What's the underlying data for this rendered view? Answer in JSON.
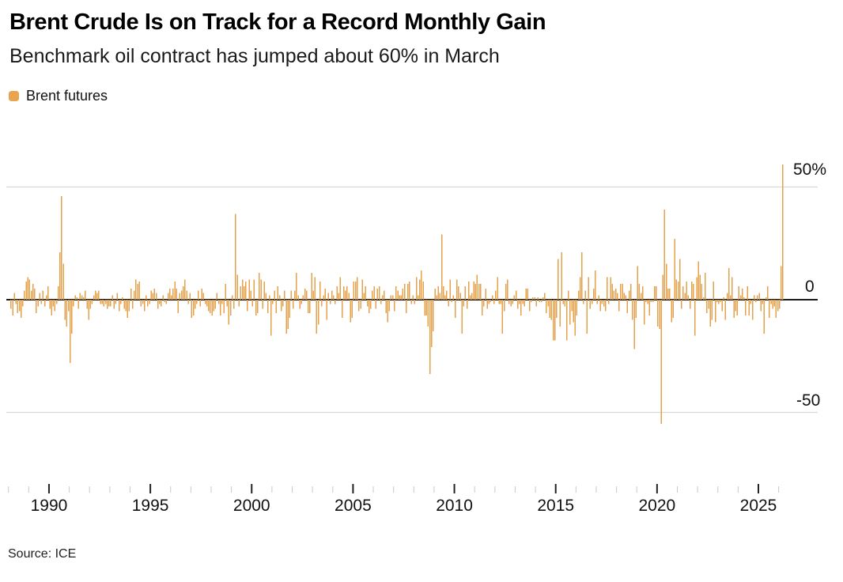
{
  "header": {
    "title": "Brent Crude Is on Track for a Record Monthly Gain",
    "subtitle": "Benchmark oil contract has jumped about 60% in March"
  },
  "legend": {
    "items": [
      {
        "label": "Brent futures",
        "swatch_color": "#e8a44e"
      }
    ]
  },
  "footer": {
    "source": "Source: ICE"
  },
  "colors": {
    "bar": "#e4a24c",
    "zero_line": "#1a1a1a",
    "gridline": "#d9d9d9",
    "tick_minor": "#c9c9c9",
    "tick_major": "#222222",
    "text": "#111111"
  },
  "chart_data": {
    "type": "bar",
    "title": "Brent Crude Is on Track for a Record Monthly Gain",
    "subtitle": "Benchmark oil contract has jumped about 60% in March",
    "unit": "% change, month over month",
    "frequency": "monthly",
    "start_month": "1988-02",
    "end_month": "2026-03",
    "grid": "horizontal gridlines at +50 and -50 only, bold zero line",
    "legend_position": "top-left",
    "ylim": [
      -60,
      65
    ],
    "y_ticks": [
      {
        "label": "50%",
        "value": 50
      },
      {
        "label": "0",
        "value": 0
      },
      {
        "label": "-50",
        "value": -50
      }
    ],
    "x_ticks_labeled": [
      1990,
      1995,
      2000,
      2005,
      2010,
      2015,
      2020,
      2025
    ],
    "x_ticks_minor_years": [
      1988,
      2026
    ],
    "highlights": {
      "1990-08": 46,
      "2008-10": -33,
      "2020-03": -55,
      "2020-05": 40,
      "2026-03": 60
    },
    "series": [
      {
        "name": "Brent futures",
        "values": [
          -4,
          -7,
          3,
          -2,
          -6,
          -5,
          -8,
          -3,
          4,
          8,
          10,
          9,
          4,
          7,
          5,
          -6,
          -3,
          3,
          -2,
          4,
          -3,
          2,
          6,
          -4,
          -7,
          -3,
          -5,
          -2,
          6,
          21,
          46,
          16,
          -9,
          -12,
          -5,
          -28,
          -15,
          -3,
          2,
          1,
          -4,
          3,
          2,
          1,
          4,
          -4,
          -9,
          -4,
          -2,
          2,
          4,
          3,
          4,
          -2,
          -2,
          -3,
          -2,
          -4,
          -3,
          -3,
          2,
          -4,
          -2,
          3,
          -5,
          -2,
          1,
          -4,
          -5,
          -8,
          -5,
          5,
          -4,
          4,
          9,
          7,
          8,
          -3,
          -2,
          -5,
          2,
          -3,
          -2,
          4,
          3,
          5,
          3,
          -4,
          -2,
          -3,
          2,
          -1,
          -2,
          3,
          5,
          2,
          5,
          8,
          5,
          -6,
          3,
          4,
          6,
          9,
          4,
          -2,
          3,
          -8,
          -7,
          -4,
          -2,
          4,
          -3,
          5,
          3,
          -2,
          -3,
          -5,
          -6,
          -7,
          -5,
          -4,
          3,
          -2,
          -7,
          -2,
          -6,
          7,
          -3,
          -11,
          -7,
          2,
          -4,
          38,
          11,
          -3,
          6,
          9,
          6,
          8,
          -5,
          9,
          4,
          -3,
          9,
          -7,
          -6,
          12,
          9,
          -4,
          8,
          3,
          -6,
          2,
          -16,
          -2,
          4,
          -6,
          6,
          2,
          -5,
          -3,
          4,
          -15,
          -13,
          -8,
          4,
          -4,
          4,
          12,
          2,
          -4,
          -2,
          2,
          5,
          4,
          -6,
          -6,
          12,
          4,
          10,
          -15,
          -11,
          8,
          -3,
          2,
          5,
          -9,
          3,
          -2,
          4,
          2,
          -2,
          6,
          3,
          10,
          -8,
          6,
          4,
          6,
          3,
          -10,
          -8,
          8,
          8,
          10,
          -5,
          -4,
          9,
          3,
          6,
          -3,
          -6,
          -4,
          4,
          6,
          -4,
          5,
          6,
          -2,
          2,
          4,
          -6,
          -10,
          -5,
          2,
          2,
          -5,
          6,
          4,
          2,
          2,
          5,
          7,
          -6,
          7,
          8,
          -2,
          2,
          -2,
          10,
          2,
          9,
          13,
          8,
          -7,
          -7,
          -12,
          -33,
          -21,
          -14,
          5,
          2,
          6,
          3,
          29,
          6,
          2,
          4,
          -3,
          9,
          -1,
          2,
          -8,
          9,
          6,
          3,
          -15,
          -3,
          6,
          -4,
          8,
          2,
          3,
          8,
          7,
          11,
          7,
          7,
          -7,
          -3,
          5,
          -4,
          -2,
          -1,
          2,
          -2,
          4,
          10,
          -2,
          -2,
          -15,
          -5,
          7,
          9,
          -2,
          -3,
          -2,
          2,
          4,
          -4,
          -2,
          -7,
          -2,
          -3,
          5,
          5,
          -5,
          -1,
          1,
          1,
          -3,
          1,
          -1,
          -1,
          1,
          3,
          -6,
          -3,
          -8,
          -9,
          -18,
          -18,
          -8,
          18,
          -12,
          21,
          -2,
          -3,
          -18,
          4,
          -11,
          -5,
          -10,
          -16,
          -7,
          4,
          10,
          21,
          -2,
          4,
          -15,
          10,
          -4,
          -2,
          5,
          13,
          -2,
          2,
          -5,
          -2,
          -3,
          -5,
          10,
          -2,
          10,
          7,
          4,
          5,
          3,
          -5,
          7,
          7,
          3,
          2,
          -6,
          4,
          7,
          -9,
          -22,
          -8,
          15,
          7,
          3,
          6,
          -11,
          -1,
          -2,
          -7,
          -1,
          -1,
          6,
          6,
          -12,
          -13,
          -55,
          11,
          40,
          16,
          5,
          5,
          -10,
          -8,
          27,
          9,
          8,
          18,
          -4,
          6,
          3,
          8,
          2,
          -4,
          8,
          7,
          -16,
          10,
          17,
          11,
          7,
          1,
          12,
          -6,
          -4,
          -12,
          -9,
          8,
          -10,
          -1,
          -2,
          -1,
          -5,
          1,
          -9,
          3,
          14,
          2,
          10,
          -8,
          -5,
          -7,
          6,
          2,
          5,
          1,
          -7,
          6,
          -7,
          -2,
          -9,
          2,
          -1,
          2,
          3,
          -5,
          -2,
          -15,
          1,
          6,
          -8,
          -2,
          -4,
          -3,
          -8,
          -5,
          -4,
          15,
          60
        ]
      }
    ]
  }
}
